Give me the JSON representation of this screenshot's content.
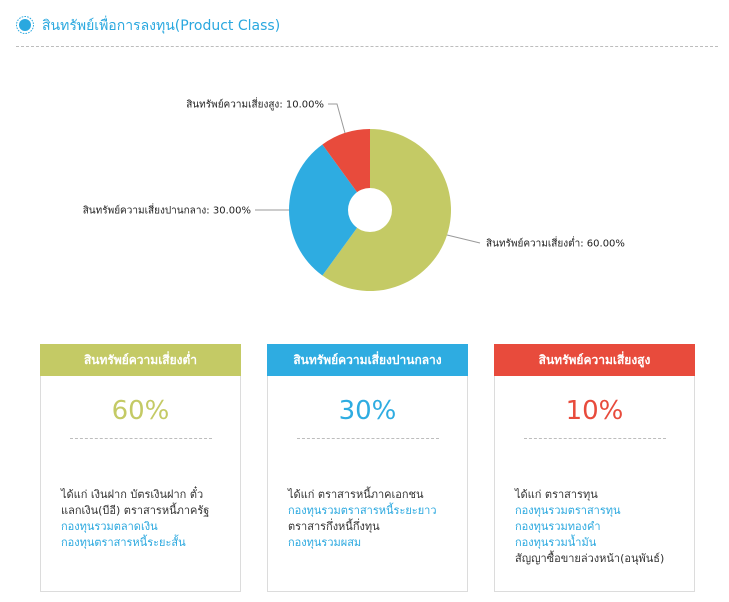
{
  "header": {
    "title": "สินทรัพย์เพื่อการลงทุน(Product Class)"
  },
  "chart_data": {
    "type": "pie",
    "title": "",
    "donut": true,
    "slices": [
      {
        "name": "สินทรัพย์ความเสี่ยงต่ำ",
        "value": 60,
        "color": "#c4ca65"
      },
      {
        "name": "สินทรัพย์ความเสี่ยงปานกลาง",
        "value": 30,
        "color": "#2eace1"
      },
      {
        "name": "สินทรัพย์ความเสี่ยงสูง",
        "value": 10,
        "color": "#e84b3c"
      }
    ],
    "labels": [
      "สินทรัพย์ความเสี่ยงต่ำ: 60.00%",
      "สินทรัพย์ความเสี่ยงปานกลาง: 30.00%",
      "สินทรัพย์ความเสี่ยงสูง: 10.00%"
    ]
  },
  "cards": [
    {
      "title": "สินทรัพย์ความเสี่ยงต่ำ",
      "percent": "60%",
      "color": "#c4ca65",
      "lines": [
        {
          "text": "ได้แก่ เงินฝาก บัตรเงินฝาก ตั๋ว",
          "link": false
        },
        {
          "text": "แลกเงิน(บีอี) ตราสารหนี้ภาครัฐ",
          "link": false
        },
        {
          "text": "กองทุนรวมตลาดเงิน",
          "link": true
        },
        {
          "text": "กองทุนตราสารหนี้ระยะสั้น",
          "link": true
        }
      ]
    },
    {
      "title": "สินทรัพย์ความเสี่ยงปานกลาง",
      "percent": "30%",
      "color": "#2eace1",
      "lines": [
        {
          "text": "ได้แก่ ตราสารหนี้ภาคเอกชน",
          "link": false
        },
        {
          "text": "กองทุนรวมตราสารหนี้ระยะยาว",
          "link": true
        },
        {
          "text": "ตราสารกึ่งหนี้กึ่งทุน",
          "link": false
        },
        {
          "text": "กองทุนรวมผสม",
          "link": true
        }
      ]
    },
    {
      "title": "สินทรัพย์ความเสี่ยงสูง",
      "percent": "10%",
      "color": "#e84b3c",
      "lines": [
        {
          "text": "ได้แก่ ตราสารทุน",
          "link": false
        },
        {
          "text": "กองทุนรวมตราสารทุน",
          "link": true
        },
        {
          "text": "กองทุนรวมทองคำ",
          "link": true
        },
        {
          "text": "กองทุนรวมน้ำมัน",
          "link": true
        },
        {
          "text": "สัญญาซื้อขายล่วงหน้า(อนุพันธ์)",
          "link": false
        }
      ]
    }
  ]
}
